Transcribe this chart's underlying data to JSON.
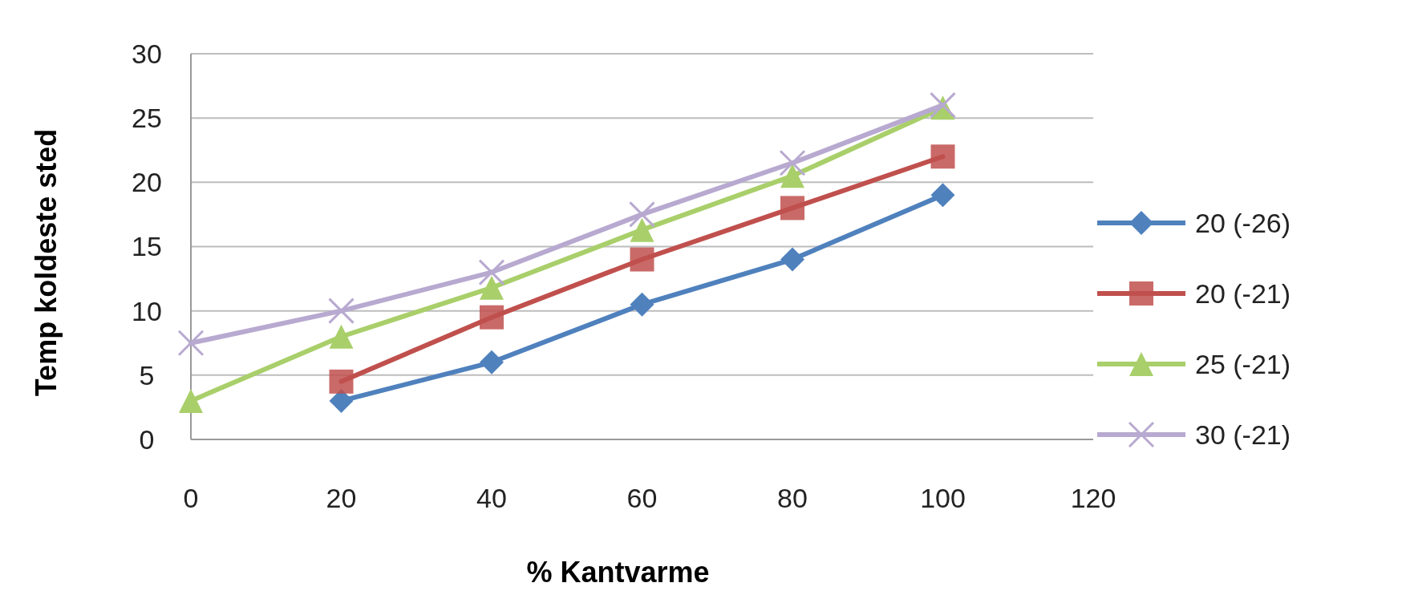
{
  "chart_data": {
    "type": "line",
    "xlabel": "% Kantvarme",
    "ylabel": "Temp koldeste sted",
    "x": [
      0,
      20,
      40,
      60,
      80,
      100
    ],
    "xlim": [
      0,
      120
    ],
    "xticks": [
      0,
      20,
      40,
      60,
      80,
      100,
      120
    ],
    "ylim": [
      0,
      30
    ],
    "yticks": [
      0,
      5,
      10,
      15,
      20,
      25,
      30
    ],
    "grid": "y",
    "legend": "right",
    "series": [
      {
        "name": "20 (-26)",
        "color": "#4f81bd",
        "marker": "diamond",
        "values": [
          null,
          3,
          6,
          10.5,
          14,
          19
        ]
      },
      {
        "name": "20 (-21)",
        "color": "#c0504d",
        "marker": "square",
        "values": [
          null,
          4.5,
          9.5,
          14,
          18,
          22
        ]
      },
      {
        "name": "25 (-21)",
        "color": "#a9cf6a",
        "marker": "triangle",
        "values": [
          3,
          8,
          11.8,
          16.3,
          20.5,
          25.8
        ]
      },
      {
        "name": "30 (-21)",
        "color": "#b8a9d0",
        "marker": "cross",
        "values": [
          7.5,
          10,
          13,
          17.5,
          21.5,
          26
        ]
      }
    ]
  }
}
